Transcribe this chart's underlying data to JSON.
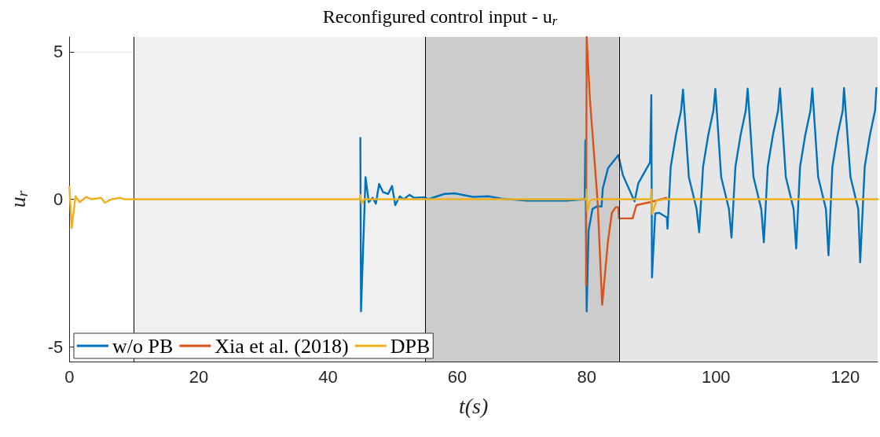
{
  "chart_data": {
    "type": "line",
    "title": "Reconfigured control input - u$_{r}$",
    "xlabel": "t(s)",
    "ylabel": "u$_{r}$",
    "xlim": [
      0,
      125
    ],
    "xticks": [
      0,
      20,
      40,
      60,
      80,
      100,
      120
    ],
    "ylim": [
      -5.5,
      5.5
    ],
    "yticks": [
      -5,
      0,
      5
    ],
    "grid": "y",
    "legend": "bottom left",
    "marker": "none",
    "line_style": "solid",
    "bands": [
      {
        "axis": "x",
        "from": 10,
        "to": 55,
        "color": "#f0f0f0"
      },
      {
        "axis": "x",
        "from": 55,
        "to": 85,
        "color": "#cccccc"
      },
      {
        "axis": "x",
        "from": 85,
        "to": 125,
        "color": "#e6e6e6"
      }
    ],
    "ref_lines": [
      {
        "axis": "x",
        "value": 10,
        "color": "#000000"
      },
      {
        "axis": "x",
        "value": 55,
        "color": "#000000"
      },
      {
        "axis": "x",
        "value": 85,
        "color": "#000000"
      }
    ],
    "series": [
      {
        "name": "w/o PB",
        "color": "#0072bd",
        "x": [
          45.0,
          45.1,
          45.8,
          46.3,
          46.9,
          47.4,
          47.9,
          48.5,
          49.3,
          49.9,
          50.4,
          51.1,
          51.7,
          52.6,
          53.3,
          54.9,
          55.5,
          58,
          59.6,
          62.4,
          64.8,
          66.8,
          70.8,
          76.9,
          79.7,
          79.8,
          80.0,
          80.3,
          80.9,
          81.7,
          82.3,
          82.5,
          83.3,
          84.9,
          85.6,
          86.5,
          87.4,
          88.0,
          89.8,
          90.0,
          90.1,
          90.6,
          91.2,
          92.4,
          92.5,
          93.0,
          93.8,
          94.6,
          94.9,
          95.8,
          97.0,
          97.4,
          98.0,
          98.8,
          99.6,
          99.9,
          100.8,
          102.0,
          102.4,
          103.0,
          103.8,
          104.6,
          104.9,
          105.8,
          107.0,
          107.4,
          108.0,
          108.8,
          109.6,
          109.9,
          110.8,
          112.0,
          112.4,
          113.0,
          113.8,
          114.6,
          114.9,
          115.8,
          117.0,
          117.4,
          118.0,
          118.8,
          119.6,
          119.8,
          120.8,
          122.0,
          122.3,
          123.0,
          123.8,
          124.6,
          124.8
        ],
        "values": [
          2.08,
          -3.8,
          0.75,
          -0.1,
          0.05,
          -0.15,
          0.52,
          0.24,
          0.18,
          0.45,
          -0.2,
          0.1,
          0,
          0.15,
          0.05,
          0.07,
          0,
          0.18,
          0.2,
          0.08,
          0.1,
          0.02,
          -0.05,
          -0.05,
          0,
          2.0,
          -3.8,
          -1.05,
          -0.33,
          -0.23,
          -0.25,
          0.37,
          1.05,
          1.5,
          0.82,
          0.37,
          -0.07,
          0.55,
          1.25,
          3.53,
          -2.65,
          -0.48,
          -0.46,
          -0.62,
          -1.0,
          1.1,
          2.17,
          3.0,
          3.72,
          0.75,
          -0.33,
          -1.12,
          1.1,
          2.17,
          3.0,
          3.74,
          0.75,
          -0.33,
          -1.3,
          1.1,
          2.17,
          3.0,
          3.75,
          0.75,
          -0.33,
          -1.46,
          1.1,
          2.17,
          3.0,
          3.76,
          0.75,
          -0.33,
          -1.67,
          1.1,
          2.17,
          3.0,
          3.76,
          0.75,
          -0.33,
          -1.9,
          1.1,
          2.17,
          3.0,
          3.77,
          0.75,
          -0.33,
          -2.14,
          1.1,
          2.17,
          3.0,
          3.77
        ]
      },
      {
        "name": "Xia et al. (2018)",
        "color": "#d95319",
        "x": [
          79.9,
          80.0,
          80.5,
          81.7,
          82.4,
          83.3,
          83.9,
          84.5,
          84.9,
          85.0,
          87.1,
          87.7,
          89.8,
          92.3
        ],
        "values": [
          -2.9,
          5.5,
          3.4,
          -0.1,
          -3.58,
          -1.4,
          -0.46,
          -0.27,
          -0.27,
          -0.65,
          -0.65,
          -0.2,
          -0.1,
          0.05
        ]
      },
      {
        "name": "DPB",
        "color": "#edb120",
        "x": [
          0,
          0.35,
          0.95,
          1.6,
          2.6,
          3.4,
          4.9,
          5.5,
          6.5,
          7.9,
          8.5,
          10,
          44.9,
          45.0,
          45.2,
          45.6,
          79.9,
          80.0,
          80.1,
          80.5,
          81,
          89.9,
          90.0,
          90.1,
          90.8,
          92,
          125
        ],
        "values": [
          0.42,
          -0.98,
          0.1,
          -0.1,
          0.08,
          0,
          0.05,
          -0.12,
          0,
          0.05,
          0,
          0,
          0,
          0.15,
          -0.15,
          0,
          0,
          0.33,
          -0.4,
          -0.05,
          0,
          0,
          0.33,
          -0.5,
          -0.05,
          0,
          0
        ]
      }
    ]
  }
}
